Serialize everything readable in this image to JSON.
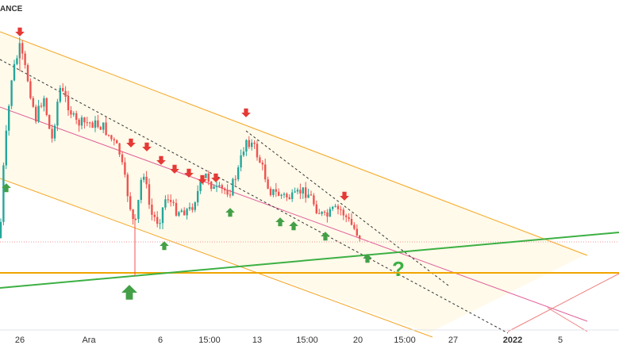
{
  "header": {
    "title": "ANCE"
  },
  "x_axis": {
    "labels": [
      "26",
      "Ara",
      "6",
      "15:00",
      "13",
      "15:00",
      "20",
      "15:00",
      "27",
      "2022",
      "5"
    ]
  },
  "annotation": {
    "question": "?"
  }
}
